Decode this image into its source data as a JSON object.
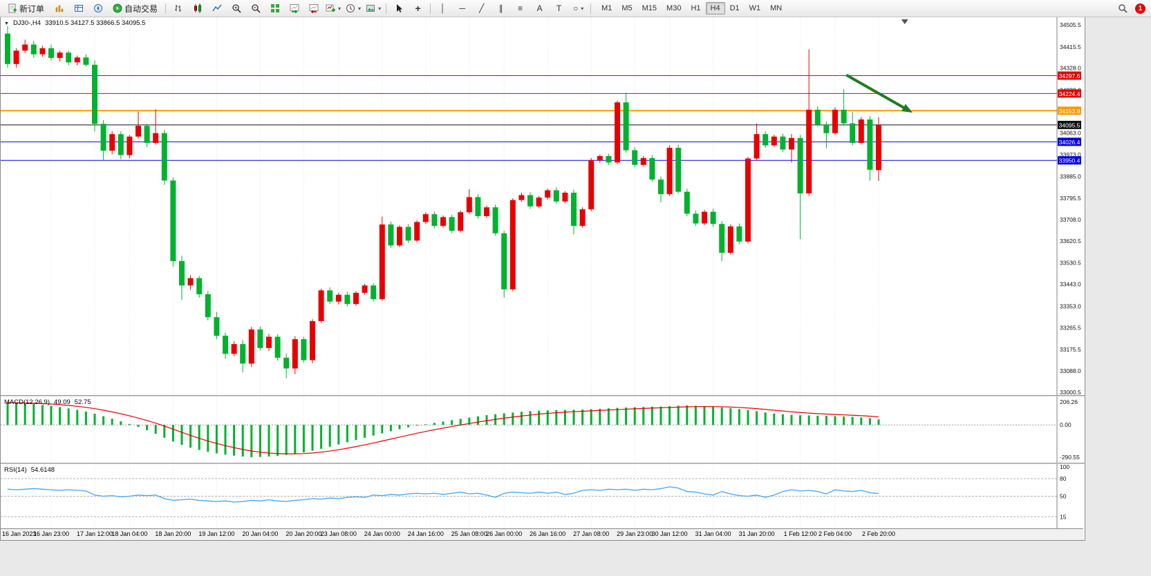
{
  "toolbar": {
    "new_order_label": "新订单",
    "autotrading_label": "自动交易",
    "timeframes": [
      "M1",
      "M5",
      "M15",
      "M30",
      "H1",
      "H4",
      "D1",
      "W1",
      "MN"
    ],
    "active_timeframe": "H4",
    "notification_badge": "1",
    "tool_glyphs": {
      "crosshair": "+",
      "vline": "│",
      "hline": "─",
      "trendline": "╱",
      "channel": "∥",
      "fibonacci": "≡",
      "text": "A",
      "label": "T",
      "shapes": "○",
      "dropdown": "▾"
    },
    "icon_names": [
      "new-order-icon",
      "market-watch-icon",
      "data-window-icon",
      "navigator-icon",
      "autotrading-icon",
      "bar-chart-icon",
      "candlestick-icon",
      "line-chart-icon",
      "zoom-in-icon",
      "zoom-out-icon",
      "tile-windows-icon",
      "auto-scroll-icon",
      "chart-shift-icon",
      "new-chart-icon",
      "periods-icon",
      "templates-icon",
      "cursor-icon",
      "crosshair-icon",
      "vertical-line-icon",
      "horizontal-line-icon",
      "trendline-icon",
      "channel-icon",
      "fibonacci-icon",
      "text-icon",
      "label-icon",
      "shapes-icon",
      "search-icon"
    ]
  },
  "chart_header": {
    "dropdown_marker": "▼",
    "symbol_period": "DJ30-,H4",
    "ohlc": "33910.5 34127.5 33866.5 34095.5"
  },
  "indicators": {
    "macd": {
      "name": "MACD(12,26,9)",
      "main_value": "49.09",
      "signal_value": "52.75"
    },
    "rsi": {
      "name": "RSI(14)",
      "value": "54.6148"
    }
  },
  "chart_data": [
    {
      "type": "candlestick",
      "symbol": "DJ30-",
      "period": "H4",
      "up_color": "#e80000",
      "down_color": "#00b22d",
      "ylim": [
        33000.5,
        34505.5
      ],
      "y_ticks": [
        "34505.5",
        "34415.5",
        "34328.0",
        "34238.0",
        "34150.5",
        "34063.0",
        "33973.0",
        "33885.0",
        "33795.5",
        "33708.0",
        "33620.5",
        "33530.5",
        "33443.0",
        "33353.0",
        "33265.5",
        "33175.5",
        "33088.0",
        "33000.5"
      ],
      "x_labels": [
        "16 Jan 2023",
        "16 Jan 23:00",
        "17 Jan 12:00",
        "18 Jan 04:00",
        "18 Jan 20:00",
        "19 Jan 12:00",
        "20 Jan 04:00",
        "20 Jan 20:00",
        "23 Jan 08:00",
        "24 Jan 00:00",
        "24 Jan 16:00",
        "25 Jan 08:00",
        "26 Jan 00:00",
        "26 Jan 16:00",
        "27 Jan 08:00",
        "29 Jan 23:00",
        "30 Jan 12:00",
        "31 Jan 04:00",
        "31 Jan 20:00",
        "1 Feb 12:00",
        "2 Feb 04:00",
        "2 Feb 20:00"
      ],
      "x_label_indices": [
        0,
        5,
        10,
        14,
        19,
        24,
        29,
        34,
        38,
        43,
        48,
        53,
        57,
        62,
        67,
        72,
        76,
        81,
        86,
        91,
        95,
        100
      ],
      "hlines": [
        {
          "value": 34297.6,
          "label": "34297.6",
          "color": "#e60000",
          "width": 1
        },
        {
          "value": 34224.4,
          "label": "34224.4",
          "color": "#e60000",
          "width": 1
        },
        {
          "value": 34153.9,
          "label": "34153.9",
          "color": "#ff9900",
          "width": 2
        },
        {
          "value": 34095.5,
          "label": "34095.5",
          "color": "#111111",
          "width": 1
        },
        {
          "value": 34026.4,
          "label": "34026.4",
          "color": "#0000e6",
          "width": 1
        },
        {
          "value": 33950.4,
          "label": "33950.4",
          "color": "#0000e6",
          "width": 1
        }
      ],
      "arrow": {
        "from_index": 96.3,
        "from_price": 34300,
        "to_index": 103.2,
        "to_price": 34160,
        "color": "#1e7d1e"
      },
      "shift_marker_index": 103,
      "ohlc_series": [
        [
          34470,
          34500,
          34330,
          34345
        ],
        [
          34345,
          34410,
          34330,
          34400
        ],
        [
          34400,
          34445,
          34390,
          34425
        ],
        [
          34425,
          34440,
          34370,
          34385
        ],
        [
          34385,
          34420,
          34375,
          34410
        ],
        [
          34410,
          34425,
          34360,
          34370
        ],
        [
          34370,
          34400,
          34355,
          34392
        ],
        [
          34392,
          34400,
          34340,
          34352
        ],
        [
          34352,
          34380,
          34340,
          34372
        ],
        [
          34372,
          34385,
          34335,
          34342
        ],
        [
          34342,
          34360,
          34070,
          34100
        ],
        [
          34100,
          34115,
          33952,
          33990
        ],
        [
          33990,
          34070,
          33975,
          34058
        ],
        [
          34058,
          34070,
          33955,
          33972
        ],
        [
          33972,
          34055,
          33960,
          34048
        ],
        [
          34048,
          34150,
          34040,
          34092
        ],
        [
          34092,
          34100,
          34005,
          34022
        ],
        [
          34022,
          34160,
          34015,
          34062
        ],
        [
          34062,
          34075,
          33850,
          33868
        ],
        [
          33868,
          33880,
          33515,
          33538
        ],
        [
          33538,
          33560,
          33380,
          33438
        ],
        [
          33438,
          33480,
          33420,
          33468
        ],
        [
          33468,
          33478,
          33388,
          33402
        ],
        [
          33402,
          33415,
          33295,
          33308
        ],
        [
          33308,
          33330,
          33218,
          33232
        ],
        [
          33232,
          33245,
          33138,
          33158
        ],
        [
          33158,
          33210,
          33148,
          33198
        ],
        [
          33198,
          33215,
          33082,
          33118
        ],
        [
          33118,
          33268,
          33105,
          33258
        ],
        [
          33258,
          33270,
          33172,
          33182
        ],
        [
          33182,
          33240,
          33170,
          33228
        ],
        [
          33228,
          33238,
          33130,
          33142
        ],
        [
          33142,
          33160,
          33058,
          33098
        ],
        [
          33098,
          33230,
          33075,
          33218
        ],
        [
          33218,
          33228,
          33122,
          33132
        ],
        [
          33132,
          33300,
          33120,
          33292
        ],
        [
          33292,
          33425,
          33285,
          33418
        ],
        [
          33418,
          33430,
          33362,
          33372
        ],
        [
          33372,
          33408,
          33360,
          33400
        ],
        [
          33400,
          33412,
          33352,
          33362
        ],
        [
          33362,
          33415,
          33355,
          33408
        ],
        [
          33408,
          33445,
          33400,
          33438
        ],
        [
          33438,
          33448,
          33372,
          33382
        ],
        [
          33382,
          33720,
          33375,
          33688
        ],
        [
          33688,
          33700,
          33592,
          33602
        ],
        [
          33602,
          33685,
          33595,
          33678
        ],
        [
          33678,
          33690,
          33612,
          33622
        ],
        [
          33622,
          33705,
          33615,
          33698
        ],
        [
          33698,
          33738,
          33690,
          33730
        ],
        [
          33730,
          33742,
          33672,
          33682
        ],
        [
          33682,
          33725,
          33675,
          33718
        ],
        [
          33718,
          33728,
          33652,
          33662
        ],
        [
          33662,
          33745,
          33655,
          33738
        ],
        [
          33738,
          33832,
          33730,
          33800
        ],
        [
          33800,
          33812,
          33712,
          33722
        ],
        [
          33722,
          33765,
          33715,
          33758
        ],
        [
          33758,
          33770,
          33642,
          33652
        ],
        [
          33652,
          33662,
          33388,
          33422
        ],
        [
          33422,
          33795,
          33415,
          33788
        ],
        [
          33788,
          33818,
          33780,
          33808
        ],
        [
          33808,
          33820,
          33752,
          33762
        ],
        [
          33762,
          33805,
          33755,
          33798
        ],
        [
          33798,
          33835,
          33790,
          33828
        ],
        [
          33828,
          33840,
          33772,
          33782
        ],
        [
          33782,
          33825,
          33775,
          33818
        ],
        [
          33818,
          33830,
          33648,
          33682
        ],
        [
          33682,
          33758,
          33675,
          33750
        ],
        [
          33750,
          33960,
          33742,
          33952
        ],
        [
          33952,
          33975,
          33940,
          33968
        ],
        [
          33968,
          33978,
          33932,
          33942
        ],
        [
          33942,
          34195,
          33935,
          34188
        ],
        [
          34188,
          34228,
          33982,
          33992
        ],
        [
          33992,
          34005,
          33922,
          33932
        ],
        [
          33932,
          33968,
          33925,
          33960
        ],
        [
          33960,
          33972,
          33862,
          33872
        ],
        [
          33872,
          33885,
          33778,
          33812
        ],
        [
          33812,
          34012,
          33805,
          34002
        ],
        [
          34002,
          34015,
          33815,
          33822
        ],
        [
          33822,
          33835,
          33722,
          33732
        ],
        [
          33732,
          33745,
          33682,
          33692
        ],
        [
          33692,
          33748,
          33685,
          33740
        ],
        [
          33740,
          33752,
          33678,
          33690
        ],
        [
          33690,
          33702,
          33538,
          33572
        ],
        [
          33572,
          33688,
          33565,
          33680
        ],
        [
          33680,
          33692,
          33608,
          33618
        ],
        [
          33618,
          33965,
          33610,
          33958
        ],
        [
          33958,
          34102,
          33952,
          34058
        ],
        [
          34058,
          34070,
          34002,
          34012
        ],
        [
          34012,
          34055,
          34005,
          34048
        ],
        [
          34048,
          34060,
          33985,
          33995
        ],
        [
          33995,
          34058,
          33942,
          34042
        ],
        [
          34042,
          34055,
          33628,
          33815
        ],
        [
          33815,
          34405,
          33805,
          34158
        ],
        [
          34158,
          34172,
          34088,
          34098
        ],
        [
          34098,
          34110,
          34000,
          34062
        ],
        [
          34062,
          34168,
          34055,
          34158
        ],
        [
          34158,
          34242,
          34092,
          34102
        ],
        [
          34102,
          34148,
          34012,
          34022
        ],
        [
          34022,
          34128,
          34015,
          34118
        ],
        [
          34118,
          34132,
          33868,
          33912
        ],
        [
          33910.5,
          34127.5,
          33866.5,
          34095.5
        ]
      ]
    },
    {
      "type": "macd",
      "name": "MACD(12,26,9)",
      "histogram_color": "#00b22d",
      "signal_color": "#e60000",
      "signal_period": 9,
      "ylim": [
        -290.55,
        206.26
      ],
      "y_ticks": [
        "206.26",
        "0.00",
        "-290.55"
      ],
      "values": [
        200,
        196,
        192,
        186,
        178,
        170,
        160,
        148,
        135,
        120,
        100,
        78,
        55,
        32,
        8,
        -18,
        -48,
        -80,
        -115,
        -150,
        -180,
        -205,
        -225,
        -242,
        -256,
        -267,
        -276,
        -284,
        -290,
        -288,
        -284,
        -278,
        -270,
        -260,
        -247,
        -232,
        -215,
        -196,
        -176,
        -156,
        -136,
        -116,
        -96,
        -76,
        -57,
        -39,
        -22,
        -7,
        6,
        18,
        30,
        42,
        54,
        66,
        77,
        87,
        96,
        104,
        111,
        118,
        124,
        128,
        131,
        133,
        135,
        136,
        138,
        141,
        145,
        149,
        153,
        156,
        159,
        161,
        163,
        165,
        168,
        172,
        175,
        172,
        168,
        163,
        157,
        150,
        142,
        133,
        123,
        112,
        102,
        95,
        90,
        87,
        85,
        83,
        81,
        79,
        76,
        72,
        67,
        60,
        49.09
      ]
    },
    {
      "type": "rsi",
      "name": "RSI(14)",
      "line_color": "#3da5ff",
      "ylim": [
        0,
        100
      ],
      "levels": [
        80,
        50,
        15
      ],
      "y_ticks": [
        "100",
        "80",
        "50",
        "15"
      ],
      "values": [
        62,
        61,
        62,
        63,
        62,
        61,
        60,
        61,
        60,
        59,
        52,
        50,
        51,
        49,
        50,
        52,
        51,
        52,
        46,
        43,
        44,
        45,
        43,
        42,
        41,
        42,
        40,
        41,
        43,
        42,
        44,
        42,
        41,
        43,
        44,
        46,
        45,
        47,
        46,
        48,
        49,
        48,
        52,
        51,
        53,
        52,
        54,
        55,
        54,
        55,
        53,
        55,
        57,
        54,
        55,
        52,
        48,
        55,
        57,
        56,
        55,
        57,
        55,
        57,
        53,
        55,
        60,
        61,
        60,
        62,
        61,
        62,
        60,
        62,
        61,
        63,
        66,
        64,
        58,
        57,
        54,
        52,
        58,
        54,
        51,
        50,
        52,
        48,
        52,
        58,
        61,
        59,
        60,
        58,
        54,
        61,
        59,
        58,
        60,
        56,
        54.6
      ]
    }
  ]
}
